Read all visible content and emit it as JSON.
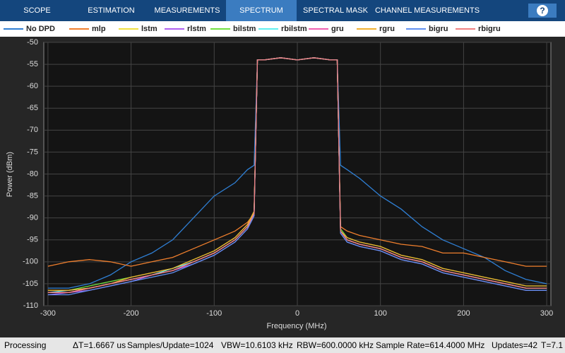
{
  "tabs": [
    "SCOPE",
    "ESTIMATION",
    "MEASUREMENTS",
    "SPECTRUM",
    "SPECTRAL MASK",
    "CHANNEL MEASUREMENTS"
  ],
  "active_tab": 3,
  "help": "?",
  "status": {
    "state": "Processing",
    "info": [
      "ΔT=1.6667 us",
      "Samples/Update=1024",
      "VBW=10.6103 kHz",
      "RBW=600.0000 kHz",
      "Sample Rate=614.4000 MHz",
      "Updates=42",
      "T=7.1"
    ]
  },
  "chart_data": {
    "type": "line",
    "xlabel": "Frequency (MHz)",
    "ylabel": "Power (dBm)",
    "xlim": [
      -305,
      305
    ],
    "ylim": [
      -110,
      -50
    ],
    "xticks": [
      -300,
      -200,
      -100,
      0,
      100,
      200,
      300
    ],
    "yticks": [
      -50,
      -55,
      -60,
      -65,
      -70,
      -75,
      -80,
      -85,
      -90,
      -95,
      -100,
      -105,
      -110
    ],
    "grid": true,
    "x": [
      -300,
      -275,
      -250,
      -225,
      -200,
      -175,
      -150,
      -125,
      -100,
      -75,
      -60,
      -52,
      -48,
      -40,
      -20,
      0,
      20,
      40,
      48,
      52,
      60,
      75,
      100,
      125,
      150,
      175,
      200,
      225,
      250,
      275,
      300
    ],
    "series": [
      {
        "name": "No DPD",
        "color": "#2f7fd4",
        "values": [
          -106,
          -106,
          -105,
          -103,
          -100,
          -98,
          -95,
          -90,
          -85,
          -82,
          -79,
          -78,
          -54,
          -54,
          -53.5,
          -54,
          -53.5,
          -54,
          -54,
          -78,
          -79,
          -81,
          -85,
          -88,
          -92,
          -95,
          -97,
          -99,
          -102,
          -104,
          -105
        ]
      },
      {
        "name": "mlp",
        "color": "#f07f2d",
        "values": [
          -101,
          -100,
          -99.5,
          -100,
          -101,
          -100,
          -99,
          -97,
          -95,
          -93,
          -91,
          -89,
          -54,
          -54,
          -53.5,
          -54,
          -53.5,
          -54,
          -54,
          -92,
          -93,
          -94,
          -95,
          -96,
          -96.5,
          -98,
          -98,
          -99,
          -100,
          -101,
          -101
        ]
      },
      {
        "name": "lstm",
        "color": "#f0e040",
        "values": [
          -107,
          -107,
          -106,
          -105,
          -104,
          -103,
          -102,
          -100,
          -98,
          -95,
          -92,
          -89,
          -54,
          -54,
          -53.5,
          -54,
          -53.5,
          -54,
          -54,
          -93,
          -95,
          -96,
          -97,
          -99,
          -100,
          -102,
          -103,
          -104,
          -105,
          -106,
          -106
        ]
      },
      {
        "name": "rlstm",
        "color": "#b060f0",
        "values": [
          -107.5,
          -107,
          -106.5,
          -105.5,
          -104.5,
          -103,
          -102,
          -100.5,
          -98.5,
          -95.5,
          -92.5,
          -89.5,
          -54,
          -54,
          -53.5,
          -54,
          -53.5,
          -54,
          -54,
          -93.5,
          -95.5,
          -96.5,
          -97.5,
          -99.5,
          -100.5,
          -102.5,
          -103.5,
          -104.5,
          -105.5,
          -106.5,
          -106.5
        ]
      },
      {
        "name": "bilstm",
        "color": "#70e040",
        "values": [
          -106.5,
          -106.5,
          -105.5,
          -104.5,
          -103.5,
          -102.5,
          -101.5,
          -99.5,
          -97.5,
          -94.5,
          -91.5,
          -88.5,
          -54,
          -54,
          -53.5,
          -54,
          -53.5,
          -54,
          -54,
          -92.5,
          -94.5,
          -95.5,
          -96.5,
          -98.5,
          -99.5,
          -101.5,
          -102.5,
          -103.5,
          -104.5,
          -105.5,
          -105.5
        ]
      },
      {
        "name": "rbilstm",
        "color": "#60f0f0",
        "values": [
          -107,
          -106.5,
          -106,
          -105,
          -104,
          -103,
          -101.5,
          -100,
          -98,
          -95,
          -92,
          -89,
          -54,
          -54,
          -53.5,
          -54,
          -53.5,
          -54,
          -54,
          -93,
          -95,
          -96,
          -97,
          -99,
          -100,
          -102,
          -103,
          -104,
          -105,
          -106,
          -106
        ]
      },
      {
        "name": "gru",
        "color": "#f060b0",
        "values": [
          -107,
          -107,
          -106,
          -105,
          -104,
          -103,
          -102,
          -100,
          -98,
          -95,
          -92,
          -89,
          -54,
          -54,
          -53.5,
          -54,
          -53.5,
          -54,
          -54,
          -93,
          -95,
          -96,
          -97,
          -99,
          -100,
          -102,
          -103,
          -104,
          -105,
          -106,
          -106
        ]
      },
      {
        "name": "rgru",
        "color": "#f0b030",
        "values": [
          -106.5,
          -106.5,
          -106,
          -105,
          -103.5,
          -102.5,
          -101.5,
          -99.5,
          -97.5,
          -94.5,
          -91.5,
          -88.5,
          -54,
          -54,
          -53.5,
          -54,
          -53.5,
          -54,
          -54,
          -93,
          -94.5,
          -95.5,
          -96.5,
          -98.5,
          -99.5,
          -101.5,
          -102.5,
          -103.5,
          -104.5,
          -105.5,
          -105.5
        ]
      },
      {
        "name": "bigru",
        "color": "#6090f0",
        "values": [
          -107.5,
          -107.5,
          -106.5,
          -105.5,
          -104.5,
          -103.5,
          -102.5,
          -100.5,
          -98.5,
          -95.5,
          -92.5,
          -89.5,
          -54,
          -54,
          -53.5,
          -54,
          -53.5,
          -54,
          -54,
          -93.5,
          -95.5,
          -96.5,
          -97.5,
          -99.5,
          -100.5,
          -102.5,
          -103.5,
          -104.5,
          -105.5,
          -106.5,
          -106.5
        ]
      },
      {
        "name": "rbigru",
        "color": "#f08080",
        "values": [
          -107,
          -107,
          -106,
          -105,
          -104,
          -103,
          -102,
          -100,
          -98,
          -95,
          -92,
          -89,
          -54,
          -54,
          -53.5,
          -54,
          -53.5,
          -54,
          -54,
          -93,
          -95,
          -96,
          -97,
          -99,
          -100,
          -102,
          -103,
          -104,
          -105,
          -106,
          -106
        ]
      }
    ]
  }
}
